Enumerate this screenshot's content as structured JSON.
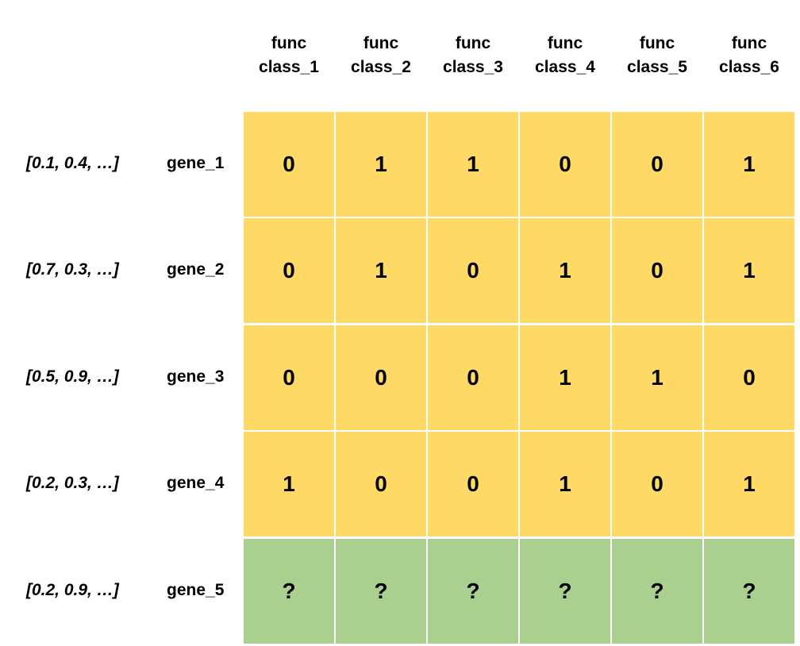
{
  "columns": [
    {
      "line1": "func",
      "line2": "class_1"
    },
    {
      "line1": "func",
      "line2": "class_2"
    },
    {
      "line1": "func",
      "line2": "class_3"
    },
    {
      "line1": "func",
      "line2": "class_4"
    },
    {
      "line1": "func",
      "line2": "class_5"
    },
    {
      "line1": "func",
      "line2": "class_6"
    }
  ],
  "rows": [
    {
      "vector": "[0.1, 0.4, …]",
      "gene": "gene_1",
      "values": [
        "0",
        "1",
        "1",
        "0",
        "0",
        "1"
      ],
      "status": "known"
    },
    {
      "vector": "[0.7, 0.3, …]",
      "gene": "gene_2",
      "values": [
        "0",
        "1",
        "0",
        "1",
        "0",
        "1"
      ],
      "status": "known"
    },
    {
      "vector": "[0.5, 0.9, …]",
      "gene": "gene_3",
      "values": [
        "0",
        "0",
        "0",
        "1",
        "1",
        "0"
      ],
      "status": "known"
    },
    {
      "vector": "[0.2, 0.3, …]",
      "gene": "gene_4",
      "values": [
        "1",
        "0",
        "0",
        "1",
        "0",
        "1"
      ],
      "status": "known"
    },
    {
      "vector": "[0.2, 0.9, …]",
      "gene": "gene_5",
      "values": [
        "?",
        "?",
        "?",
        "?",
        "?",
        "?"
      ],
      "status": "unknown"
    }
  ],
  "colors": {
    "known_fill": "#ffd966",
    "unknown_fill": "#a9d08e",
    "grid_lines": "#ffffff"
  }
}
